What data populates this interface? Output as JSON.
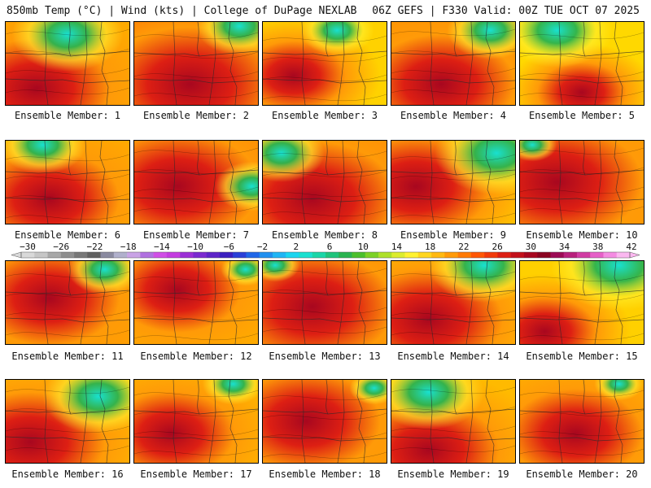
{
  "header": {
    "left_title": "850mb Temp (°C) | Wind (kts) | College of DuPage NEXLAB",
    "right_title": "06Z GEFS | F330 Valid: 00Z TUE OCT 07 2025"
  },
  "panels": [
    {
      "label": "Ensemble Member: 1",
      "hot": [
        0.25,
        0.8,
        1.0
      ],
      "cool": [
        0.5,
        0.15,
        0.45
      ],
      "base": "#ffaa00"
    },
    {
      "label": "Ensemble Member: 2",
      "hot": [
        0.45,
        0.75,
        1.15
      ],
      "cool": [
        0.85,
        0.05,
        0.35
      ],
      "base": "#ff6a00"
    },
    {
      "label": "Ensemble Member: 3",
      "hot": [
        0.25,
        0.65,
        0.7
      ],
      "cool": [
        0.6,
        0.1,
        0.3
      ],
      "base": "#ffd200"
    },
    {
      "label": "Ensemble Member: 4",
      "hot": [
        0.4,
        0.75,
        1.0
      ],
      "cool": [
        0.8,
        0.1,
        0.35
      ],
      "base": "#ff9200"
    },
    {
      "label": "Ensemble Member: 5",
      "hot": [
        0.5,
        0.85,
        0.6
      ],
      "cool": [
        0.3,
        0.1,
        0.45
      ],
      "base": "#ffd800"
    },
    {
      "label": "Ensemble Member: 6",
      "hot": [
        0.35,
        0.7,
        0.95
      ],
      "cool": [
        0.3,
        0.05,
        0.35
      ],
      "base": "#ffaa00"
    },
    {
      "label": "Ensemble Member: 7",
      "hot": [
        0.35,
        0.55,
        1.1
      ],
      "cool": [
        0.95,
        0.55,
        0.3
      ],
      "base": "#ff8400"
    },
    {
      "label": "Ensemble Member: 8",
      "hot": [
        0.4,
        0.7,
        1.15
      ],
      "cool": [
        0.15,
        0.15,
        0.35
      ],
      "base": "#ff8a00"
    },
    {
      "label": "Ensemble Member: 9",
      "hot": [
        0.2,
        0.55,
        1.0
      ],
      "cool": [
        0.85,
        0.15,
        0.5
      ],
      "base": "#ffcc00"
    },
    {
      "label": "Ensemble Member: 10",
      "hot": [
        0.3,
        0.5,
        1.15
      ],
      "cool": [
        0.1,
        0.05,
        0.2
      ],
      "base": "#ff9a00"
    },
    {
      "label": "Ensemble Member: 11",
      "hot": [
        0.35,
        0.45,
        0.95
      ],
      "cool": [
        0.8,
        0.1,
        0.3
      ],
      "base": "#ffa000"
    },
    {
      "label": "Ensemble Member: 12",
      "hot": [
        0.35,
        0.35,
        0.85
      ],
      "cool": [
        0.9,
        0.1,
        0.2
      ],
      "base": "#ffaa00"
    },
    {
      "label": "Ensemble Member: 13",
      "hot": [
        0.4,
        0.55,
        1.1
      ],
      "cool": [
        0.1,
        0.05,
        0.2
      ],
      "base": "#ff9000"
    },
    {
      "label": "Ensemble Member: 14",
      "hot": [
        0.3,
        0.7,
        1.0
      ],
      "cool": [
        0.75,
        0.05,
        0.45
      ],
      "base": "#ffc000"
    },
    {
      "label": "Ensemble Member: 15",
      "hot": [
        0.2,
        0.85,
        0.7
      ],
      "cool": [
        0.8,
        0.05,
        0.55
      ],
      "base": "#ffd000"
    },
    {
      "label": "Ensemble Member: 16",
      "hot": [
        0.2,
        0.75,
        1.0
      ],
      "cool": [
        0.75,
        0.2,
        0.45
      ],
      "base": "#ffb800"
    },
    {
      "label": "Ensemble Member: 17",
      "hot": [
        0.3,
        0.65,
        0.85
      ],
      "cool": [
        0.8,
        0.05,
        0.25
      ],
      "base": "#ffb400"
    },
    {
      "label": "Ensemble Member: 18",
      "hot": [
        0.35,
        0.5,
        1.0
      ],
      "cool": [
        0.9,
        0.1,
        0.2
      ],
      "base": "#ff9c00"
    },
    {
      "label": "Ensemble Member: 19",
      "hot": [
        0.3,
        0.85,
        0.95
      ],
      "cool": [
        0.3,
        0.15,
        0.45
      ],
      "base": "#ffba00"
    },
    {
      "label": "Ensemble Member: 20",
      "hot": [
        0.45,
        0.65,
        0.9
      ],
      "cool": [
        0.8,
        0.05,
        0.2
      ],
      "base": "#ffb000"
    }
  ],
  "colorbar": {
    "units": "°C",
    "tick_labels": [
      "−30",
      "−26",
      "−22",
      "−18",
      "−14",
      "−10",
      "−6",
      "−2",
      "2",
      "6",
      "10",
      "14",
      "18",
      "22",
      "26",
      "30",
      "34",
      "38",
      "42"
    ],
    "colors": [
      "#d9d9d9",
      "#c6c6c6",
      "#a8a8a8",
      "#8e8e8e",
      "#777777",
      "#606060",
      "#8a8aa0",
      "#b0b0cc",
      "#c9a3e6",
      "#b070e0",
      "#d04ee6",
      "#c43ce0",
      "#9b2fd6",
      "#7a2ad0",
      "#5d24c8",
      "#3a1fc0",
      "#2a3fd8",
      "#1f66e8",
      "#1f8ff0",
      "#1fb5f5",
      "#1ad5f0",
      "#19e0d0",
      "#1ad6a8",
      "#1fc47c",
      "#2ab34f",
      "#4bbf2c",
      "#7cd126",
      "#aee02a",
      "#dcec2e",
      "#fff231",
      "#ffd61f",
      "#ffb911",
      "#ff9a08",
      "#ff7a05",
      "#ff5705",
      "#f23a0a",
      "#dd1f13",
      "#c3101a",
      "#a8071f",
      "#8a0420",
      "#9c0a55",
      "#b8207c",
      "#d13ca3",
      "#e660c8",
      "#f48be2",
      "#fbb8f0"
    ]
  },
  "legend_colors": {
    "green": "#2ab34f",
    "cyan": "#19e0d0",
    "yellow": "#fff231",
    "orange": "#ff9a08",
    "red": "#dd1f13",
    "darkred": "#a8071f"
  }
}
